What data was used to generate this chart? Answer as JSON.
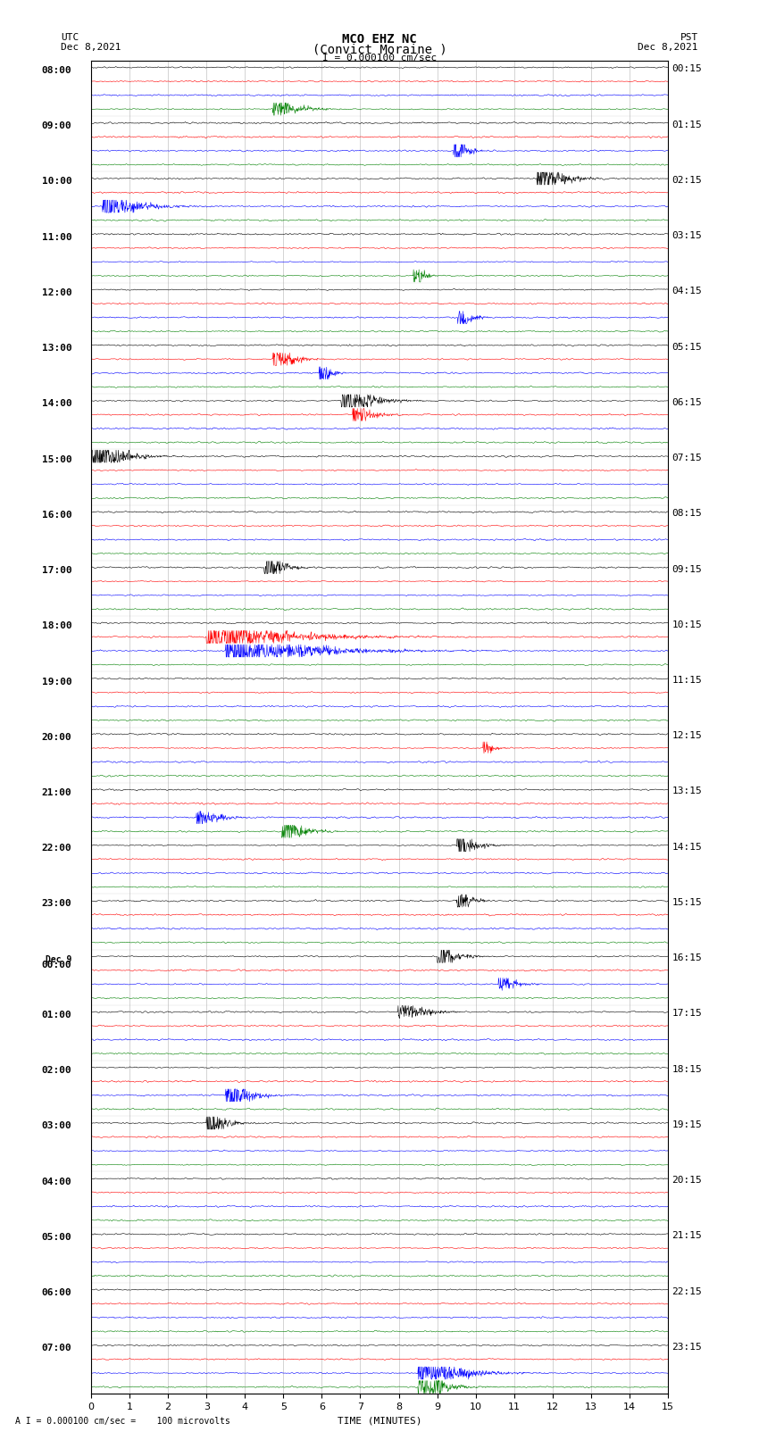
{
  "title_line1": "MCO EHZ NC",
  "title_line2": "(Convict Moraine )",
  "scale_label": "I = 0.000100 cm/sec",
  "footer_label": "A I = 0.000100 cm/sec =    100 microvolts",
  "utc_label": "UTC",
  "utc_date": "Dec 8,2021",
  "pst_label": "PST",
  "pst_date": "Dec 8,2021",
  "xlabel": "TIME (MINUTES)",
  "bg_color": "#ffffff",
  "trace_colors": [
    "black",
    "red",
    "blue",
    "green"
  ],
  "left_times": [
    "08:00",
    "09:00",
    "10:00",
    "11:00",
    "12:00",
    "13:00",
    "14:00",
    "15:00",
    "16:00",
    "17:00",
    "18:00",
    "19:00",
    "20:00",
    "21:00",
    "22:00",
    "23:00",
    "Dec 9\n00:00",
    "01:00",
    "02:00",
    "03:00",
    "04:00",
    "05:00",
    "06:00",
    "07:00"
  ],
  "right_times": [
    "00:15",
    "01:15",
    "02:15",
    "03:15",
    "04:15",
    "05:15",
    "06:15",
    "07:15",
    "08:15",
    "09:15",
    "10:15",
    "11:15",
    "12:15",
    "13:15",
    "14:15",
    "15:15",
    "16:15",
    "17:15",
    "18:15",
    "19:15",
    "20:15",
    "21:15",
    "22:15",
    "23:15"
  ],
  "n_rows": 24,
  "traces_per_row": 4,
  "n_minutes": 15,
  "noise_base": 0.15,
  "grid_color": "#888888",
  "axes_color": "#000000",
  "font_size_title": 10,
  "font_size_labels": 8,
  "font_size_ticks": 8
}
